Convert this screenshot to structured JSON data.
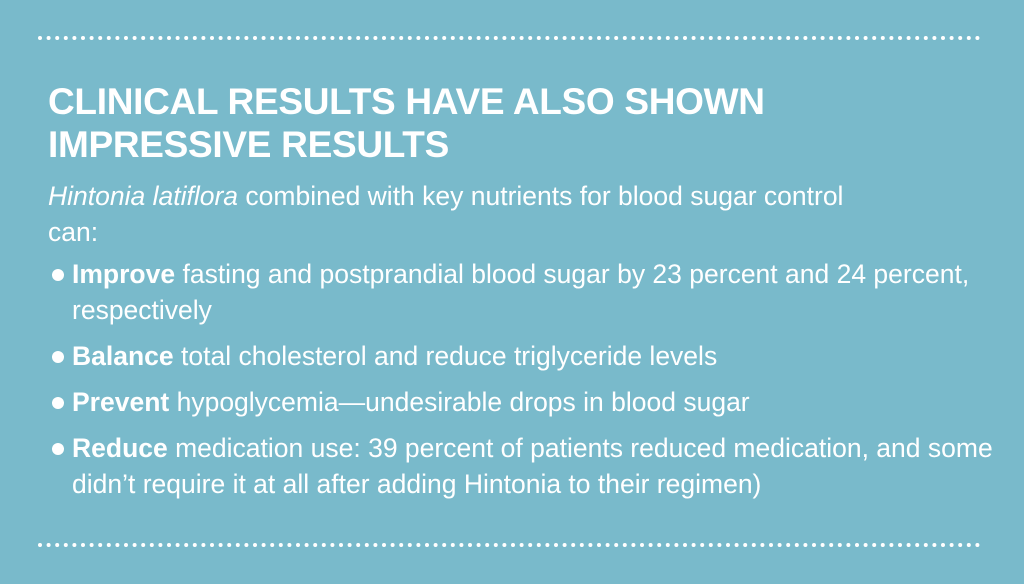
{
  "heading": "CLINICAL RESULTS HAVE ALSO SHOWN IMPRESSIVE RESULTS",
  "intro": {
    "italic": "Hintonia latiflora",
    "text": "combined with key nutrients for blood sugar control can:"
  },
  "bullets": [
    {
      "bold": "Improve",
      "text": "fasting and postprandial blood sugar by 23 percent and 24 percent, respectively"
    },
    {
      "bold": "Balance",
      "text": "total cholesterol and reduce triglyceride levels"
    },
    {
      "bold": "Prevent",
      "text": "hypoglycemia—undesirable drops in blood sugar"
    },
    {
      "bold": "Reduce",
      "text": "medication use: 39 percent of patients reduced medication, and some didn’t require it at all after adding Hintonia to their regimen)"
    }
  ]
}
